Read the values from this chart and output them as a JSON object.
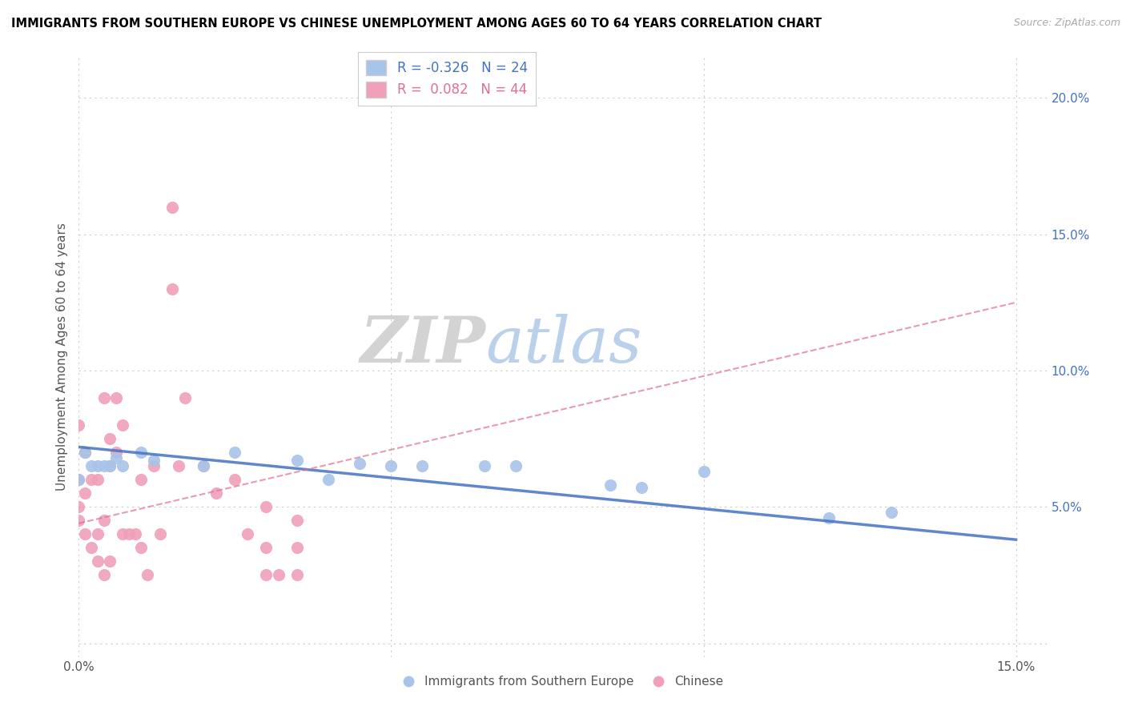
{
  "title": "IMMIGRANTS FROM SOUTHERN EUROPE VS CHINESE UNEMPLOYMENT AMONG AGES 60 TO 64 YEARS CORRELATION CHART",
  "source": "Source: ZipAtlas.com",
  "ylabel": "Unemployment Among Ages 60 to 64 years",
  "xlim": [
    0.0,
    0.155
  ],
  "ylim": [
    -0.005,
    0.215
  ],
  "blue_R": "-0.326",
  "blue_N": "24",
  "pink_R": "0.082",
  "pink_N": "44",
  "blue_color": "#a8c4e8",
  "pink_color": "#f0a0b8",
  "blue_line_color": "#4472c4",
  "pink_line_color": "#e07090",
  "blue_scatter_x": [
    0.0,
    0.001,
    0.002,
    0.003,
    0.004,
    0.005,
    0.006,
    0.007,
    0.01,
    0.012,
    0.02,
    0.025,
    0.035,
    0.04,
    0.045,
    0.05,
    0.055,
    0.065,
    0.07,
    0.085,
    0.09,
    0.1,
    0.12,
    0.13
  ],
  "blue_scatter_y": [
    0.06,
    0.07,
    0.065,
    0.065,
    0.065,
    0.065,
    0.068,
    0.065,
    0.07,
    0.067,
    0.065,
    0.07,
    0.067,
    0.06,
    0.066,
    0.065,
    0.065,
    0.065,
    0.065,
    0.058,
    0.057,
    0.063,
    0.046,
    0.048
  ],
  "pink_scatter_x": [
    0.0,
    0.0,
    0.0,
    0.0,
    0.001,
    0.001,
    0.001,
    0.002,
    0.002,
    0.003,
    0.003,
    0.003,
    0.004,
    0.004,
    0.004,
    0.005,
    0.005,
    0.005,
    0.006,
    0.006,
    0.007,
    0.007,
    0.008,
    0.009,
    0.01,
    0.01,
    0.011,
    0.012,
    0.013,
    0.015,
    0.015,
    0.016,
    0.017,
    0.02,
    0.022,
    0.025,
    0.027,
    0.03,
    0.03,
    0.03,
    0.032,
    0.035,
    0.035,
    0.035
  ],
  "pink_scatter_y": [
    0.045,
    0.05,
    0.06,
    0.08,
    0.04,
    0.055,
    0.07,
    0.035,
    0.06,
    0.03,
    0.04,
    0.06,
    0.025,
    0.045,
    0.09,
    0.03,
    0.065,
    0.075,
    0.07,
    0.09,
    0.04,
    0.08,
    0.04,
    0.04,
    0.035,
    0.06,
    0.025,
    0.065,
    0.04,
    0.13,
    0.16,
    0.065,
    0.09,
    0.065,
    0.055,
    0.06,
    0.04,
    0.025,
    0.035,
    0.05,
    0.025,
    0.025,
    0.035,
    0.045
  ],
  "blue_line_x0": 0.0,
  "blue_line_y0": 0.072,
  "blue_line_x1": 0.15,
  "blue_line_y1": 0.038,
  "pink_line_x0": 0.0,
  "pink_line_y0": 0.044,
  "pink_line_x1": 0.15,
  "pink_line_y1": 0.125
}
